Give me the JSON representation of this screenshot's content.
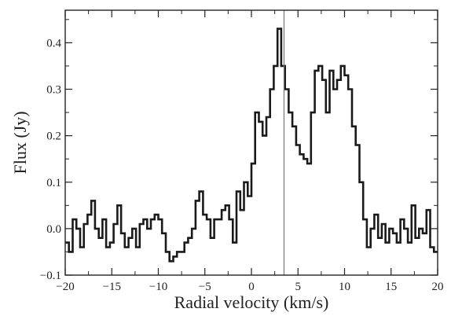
{
  "chart_data": {
    "type": "line",
    "title": "",
    "xlabel": "Radial velocity (km/s)",
    "ylabel": "Flux (Jy)",
    "xlim": [
      -20,
      20
    ],
    "ylim": [
      -0.1,
      0.47
    ],
    "xticks": [
      -20,
      -15,
      -10,
      -5,
      0,
      5,
      10,
      15,
      20
    ],
    "xtick_labels": [
      "−20",
      "−15",
      "−10",
      "−5",
      "0",
      "5",
      "10",
      "15",
      "20"
    ],
    "yticks": [
      -0.1,
      0.0,
      0.1,
      0.2,
      0.3,
      0.4
    ],
    "ytick_labels": [
      "−0.1",
      "0.0",
      "0.1",
      "0.2",
      "0.3",
      "0.4"
    ],
    "grid": false,
    "legend": "none",
    "step": true,
    "vertical_line_x": 3.5,
    "colors": {
      "line": "#1a1a1a",
      "marker_line": "#777777",
      "frame": "#222222"
    },
    "series": [
      {
        "x": [
          -20,
          -19.6,
          -19.2,
          -18.8,
          -18.4,
          -18,
          -17.6,
          -17.2,
          -16.8,
          -16.4,
          -16,
          -15.6,
          -15.2,
          -14.8,
          -14.4,
          -14,
          -13.6,
          -13.2,
          -12.8,
          -12.4,
          -12,
          -11.6,
          -11.2,
          -10.8,
          -10.4,
          -10,
          -9.6,
          -9.2,
          -8.8,
          -8.4,
          -8,
          -7.6,
          -7.2,
          -6.8,
          -6.4,
          -6,
          -5.6,
          -5.2,
          -4.8,
          -4.4,
          -4,
          -3.6,
          -3.2,
          -2.8,
          -2.4,
          -2,
          -1.6,
          -1.2,
          -0.8,
          -0.4,
          0,
          0.4,
          0.8,
          1.2,
          1.6,
          2,
          2.4,
          2.8,
          3.2,
          3.6,
          4,
          4.4,
          4.8,
          5.2,
          5.6,
          6,
          6.4,
          6.8,
          7.2,
          7.6,
          8,
          8.4,
          8.8,
          9.2,
          9.6,
          10,
          10.4,
          10.8,
          11.2,
          11.6,
          12,
          12.4,
          12.8,
          13.2,
          13.6,
          14,
          14.4,
          14.8,
          15.2,
          15.6,
          16,
          16.4,
          16.8,
          17.2,
          17.6,
          18,
          18.4,
          18.8,
          19.2,
          19.6
        ],
        "y": [
          -0.03,
          -0.05,
          0.02,
          0.0,
          -0.04,
          0.01,
          0.03,
          0.06,
          0.0,
          -0.02,
          0.02,
          -0.04,
          -0.03,
          0.01,
          0.05,
          -0.01,
          -0.04,
          -0.02,
          0.0,
          -0.04,
          0.01,
          0.02,
          0.0,
          0.02,
          0.03,
          0.02,
          -0.01,
          -0.05,
          -0.07,
          -0.06,
          -0.05,
          -0.05,
          -0.03,
          -0.02,
          0.0,
          0.06,
          0.08,
          0.03,
          0.02,
          -0.02,
          0.02,
          0.02,
          0.04,
          0.05,
          0.02,
          -0.03,
          0.08,
          0.04,
          0.1,
          0.07,
          0.14,
          0.25,
          0.23,
          0.2,
          0.24,
          0.3,
          0.35,
          0.43,
          0.35,
          0.3,
          0.25,
          0.22,
          0.18,
          0.16,
          0.15,
          0.14,
          0.25,
          0.34,
          0.35,
          0.32,
          0.25,
          0.34,
          0.3,
          0.32,
          0.35,
          0.33,
          0.3,
          0.22,
          0.18,
          0.1,
          0.02,
          -0.04,
          0.0,
          0.03,
          -0.02,
          0.01,
          -0.03,
          0.0,
          -0.01,
          -0.03,
          0.02,
          0.0,
          -0.03,
          0.05,
          -0.02,
          0.0,
          -0.01,
          0.04,
          -0.04,
          -0.05
        ]
      }
    ]
  }
}
